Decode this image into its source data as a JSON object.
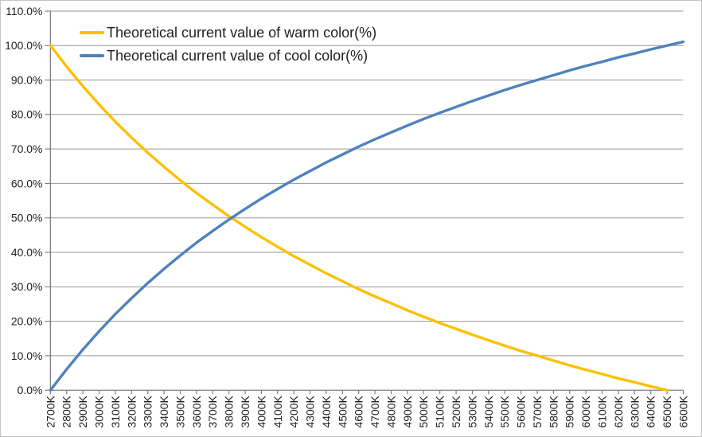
{
  "chart_data": {
    "type": "line",
    "title": "",
    "xlabel": "",
    "ylabel": "",
    "grid": "horizontal",
    "legend_position": "top-left-inside",
    "categories": [
      "2700K",
      "2800K",
      "2900K",
      "3000K",
      "3100K",
      "3200K",
      "3300K",
      "3400K",
      "3500K",
      "3600K",
      "3700K",
      "3800K",
      "3900K",
      "4000K",
      "4100K",
      "4200K",
      "4300K",
      "4400K",
      "4500K",
      "4600K",
      "4700K",
      "4800K",
      "4900K",
      "5000K",
      "5100K",
      "5200K",
      "5300K",
      "5400K",
      "5500K",
      "5600K",
      "5700K",
      "5800K",
      "5900K",
      "6000K",
      "6100K",
      "6200K",
      "6300K",
      "6400K",
      "6500K",
      "6600K"
    ],
    "series": [
      {
        "name": "Theoretical current value of warm color(%)",
        "color": "#FFC000",
        "values": [
          100.0,
          93.9,
          88.2,
          82.9,
          77.9,
          73.3,
          68.9,
          64.8,
          60.9,
          57.2,
          53.8,
          50.5,
          47.4,
          44.4,
          41.6,
          38.9,
          36.4,
          33.9,
          31.6,
          29.3,
          27.2,
          25.2,
          23.2,
          21.3,
          19.5,
          17.8,
          16.1,
          14.5,
          12.9,
          11.4,
          10.0,
          8.6,
          7.2,
          5.9,
          4.7,
          3.4,
          2.3,
          1.1,
          0.0
        ]
      },
      {
        "name": "Theoretical current value of cool color(%)",
        "color": "#4F81BD",
        "values": [
          0.0,
          6.1,
          11.8,
          17.1,
          22.1,
          26.7,
          31.1,
          35.2,
          39.1,
          42.8,
          46.2,
          49.5,
          52.6,
          55.6,
          58.4,
          61.1,
          63.6,
          66.1,
          68.4,
          70.7,
          72.8,
          74.8,
          76.8,
          78.7,
          80.5,
          82.2,
          83.9,
          85.5,
          87.1,
          88.6,
          90.0,
          91.4,
          92.8,
          94.1,
          95.3,
          96.6,
          97.7,
          98.9,
          100.0,
          101.1
        ]
      }
    ],
    "y_axis": {
      "min": 0,
      "max": 110,
      "step": 10,
      "tick_labels": [
        "0.0%",
        "10.0%",
        "20.0%",
        "30.0%",
        "40.0%",
        "50.0%",
        "60.0%",
        "70.0%",
        "80.0%",
        "90.0%",
        "100.0%",
        "110.0%"
      ]
    },
    "x_axis": {
      "tick_label_rotation": -90
    }
  },
  "colors": {
    "gridline": "#969696",
    "axis": "#7F7F7F",
    "tick_text": "#1F1F1F",
    "background": "#FFFFFF"
  }
}
